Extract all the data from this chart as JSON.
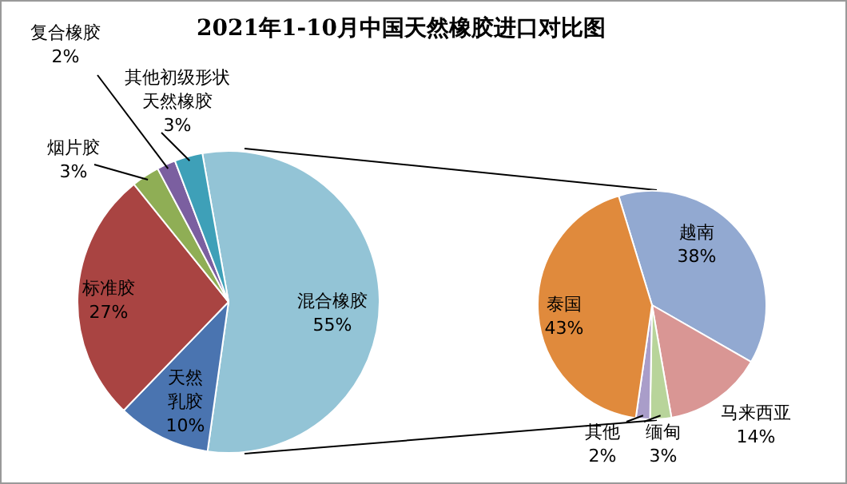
{
  "chart_data": [
    {
      "type": "pie",
      "title": "2021年1-10月中国天然橡胶进口对比图",
      "categories": [
        "混合橡胶",
        "天然乳胶",
        "标准胶",
        "烟片胶",
        "复合橡胶",
        "其他初级形状天然橡胶"
      ],
      "values": [
        55,
        10,
        27,
        3,
        2,
        3
      ],
      "value_labels": [
        "55%",
        "10%",
        "27%",
        "3%",
        "2%",
        "3%"
      ],
      "colors": [
        "#93c4d6",
        "#4a74b0",
        "#a94442",
        "#8fae55",
        "#7b5fa0",
        "#3ea0b8"
      ],
      "legend": false
    },
    {
      "type": "pie",
      "categories": [
        "越南",
        "马来西亚",
        "缅甸",
        "其他",
        "泰国"
      ],
      "values": [
        38,
        14,
        3,
        2,
        43
      ],
      "value_labels": [
        "38%",
        "14%",
        "3%",
        "2%",
        "43%"
      ],
      "colors": [
        "#92a9d1",
        "#d99694",
        "#b8d49a",
        "#a99dc9",
        "#e08a3c"
      ],
      "legend": false
    }
  ]
}
